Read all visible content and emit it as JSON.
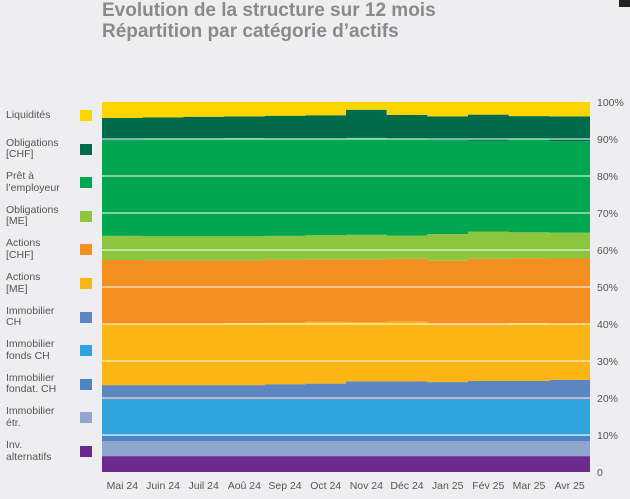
{
  "title": {
    "line1": "Evolution de la structure sur 12 mois",
    "line2": "Répartition par catégorie d’actifs"
  },
  "chart_data": {
    "type": "area",
    "stacked": true,
    "title": "Evolution de la structure sur 12 mois",
    "subtitle": "Répartition par catégorie d’actifs",
    "categories": [
      "Mai 24",
      "Juin 24",
      "Juil 24",
      "Aoû 24",
      "Sep 24",
      "Oct 24",
      "Nov 24",
      "Déc 24",
      "Jan 25",
      "Fév 25",
      "Mar 25",
      "Avr 25"
    ],
    "y_ticks": [
      "0",
      "10%",
      "20%",
      "30%",
      "40%",
      "50%",
      "60%",
      "70%",
      "80%",
      "90%",
      "100%"
    ],
    "ylim": [
      0,
      100
    ],
    "grid": true,
    "legend_position": "left",
    "series": [
      {
        "name": "Inv.\nalternatifs",
        "color": "#6b2a8e",
        "values": [
          4.3,
          4.3,
          4.3,
          4.3,
          4.3,
          4.3,
          4.3,
          4.3,
          4.3,
          4.3,
          4.3,
          4.3
        ]
      },
      {
        "name": "Immobilier\nétr.",
        "color": "#8fa6cd",
        "values": [
          4.0,
          4.0,
          4.0,
          4.0,
          4.0,
          4.0,
          4.0,
          4.0,
          4.0,
          4.0,
          4.0,
          4.0
        ]
      },
      {
        "name": "Immobilier\nfondat. CH",
        "color": "#4d85c2",
        "values": [
          1.5,
          1.5,
          1.5,
          1.5,
          1.5,
          1.5,
          1.5,
          1.5,
          1.5,
          1.5,
          1.5,
          1.5
        ]
      },
      {
        "name": "Immobilier\nfonds CH",
        "color": "#2ea3dd",
        "values": [
          9.7,
          9.7,
          9.7,
          9.7,
          9.7,
          9.7,
          9.7,
          9.7,
          9.7,
          9.7,
          9.7,
          9.7
        ]
      },
      {
        "name": "Immobilier\nCH",
        "color": "#5b86bf",
        "values": [
          4.0,
          4.0,
          4.0,
          4.0,
          4.2,
          4.4,
          5.0,
          5.0,
          4.8,
          5.1,
          5.1,
          5.4
        ]
      },
      {
        "name": "Actions\n[ME]",
        "color": "#fbb514",
        "values": [
          16.5,
          16.5,
          16.5,
          16.7,
          16.7,
          16.7,
          16.0,
          16.2,
          15.5,
          15.2,
          15.6,
          15.1
        ]
      },
      {
        "name": "Actions\n[CHF]",
        "color": "#f39020",
        "values": [
          17.3,
          17.2,
          17.2,
          17.0,
          17.0,
          16.9,
          17.0,
          16.9,
          17.3,
          17.8,
          17.6,
          17.7
        ]
      },
      {
        "name": "Obligations\n[ME]",
        "color": "#8cc63e",
        "values": [
          6.5,
          6.5,
          6.5,
          6.5,
          6.4,
          6.5,
          6.6,
          6.3,
          7.2,
          7.4,
          7.0,
          7.0
        ]
      },
      {
        "name": "Prêt à\nl’employeur",
        "color": "#00a650",
        "values": [
          25.9,
          26.4,
          26.4,
          26.5,
          26.3,
          26.1,
          26.3,
          26.1,
          25.4,
          24.6,
          25.1,
          24.7
        ]
      },
      {
        "name": "Obligations\n[CHF]",
        "color": "#006b49",
        "values": [
          6.0,
          5.7,
          5.9,
          5.9,
          6.2,
          6.3,
          7.5,
          6.5,
          6.4,
          7.0,
          6.3,
          6.7
        ]
      },
      {
        "name": "Liquidités",
        "color": "#ffd500",
        "values": [
          4.3,
          4.2,
          4.0,
          3.9,
          3.7,
          3.6,
          2.1,
          3.5,
          3.9,
          3.4,
          3.8,
          3.9
        ]
      }
    ]
  }
}
